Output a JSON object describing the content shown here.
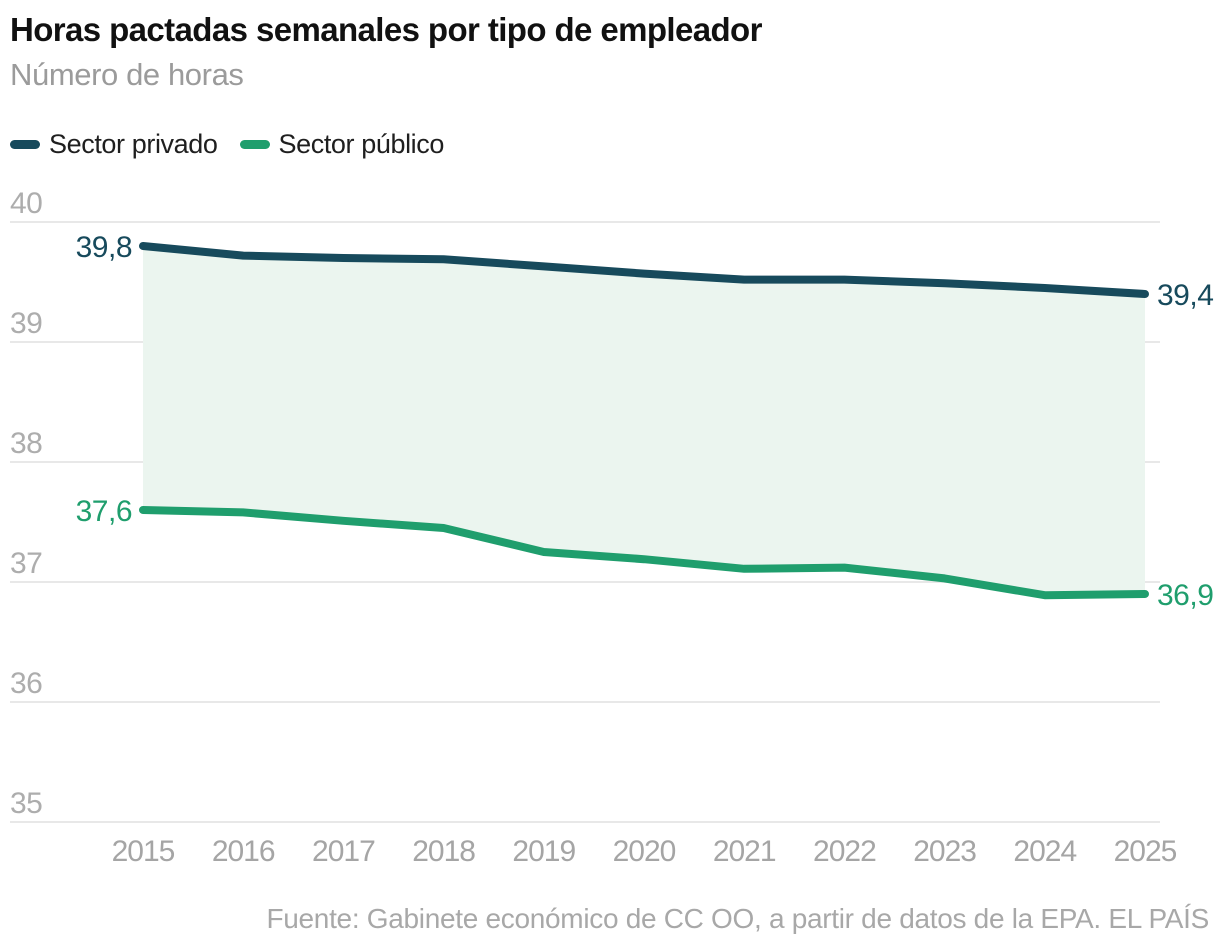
{
  "chart_data": {
    "type": "line",
    "title": "Horas pactadas semanales por tipo de empleador",
    "subtitle": "Número de horas",
    "x": [
      2015,
      2016,
      2017,
      2018,
      2019,
      2020,
      2021,
      2022,
      2023,
      2024,
      2025
    ],
    "series": [
      {
        "name": "Sector privado",
        "color": "#174a5c",
        "values": [
          39.8,
          39.72,
          39.7,
          39.69,
          39.63,
          39.57,
          39.52,
          39.52,
          39.49,
          39.45,
          39.4
        ],
        "first_point_label": "39,8",
        "last_point_label": "39,4"
      },
      {
        "name": "Sector público",
        "color": "#1f9e6d",
        "values": [
          37.6,
          37.58,
          37.51,
          37.45,
          37.25,
          37.19,
          37.11,
          37.12,
          37.03,
          36.89,
          36.9
        ],
        "first_point_label": "37,6",
        "last_point_label": "36,9"
      }
    ],
    "yticks": [
      "40",
      "39",
      "38",
      "37",
      "36",
      "35"
    ],
    "ylim": [
      35,
      40
    ],
    "grid": "horizontal",
    "legend_position": "top-left",
    "band_fill_between_series": "#ebf5ef",
    "decimal_separator": ","
  },
  "source": "Fuente: Gabinete económico de CC OO, a partir de datos de la EPA. EL PAÍS"
}
